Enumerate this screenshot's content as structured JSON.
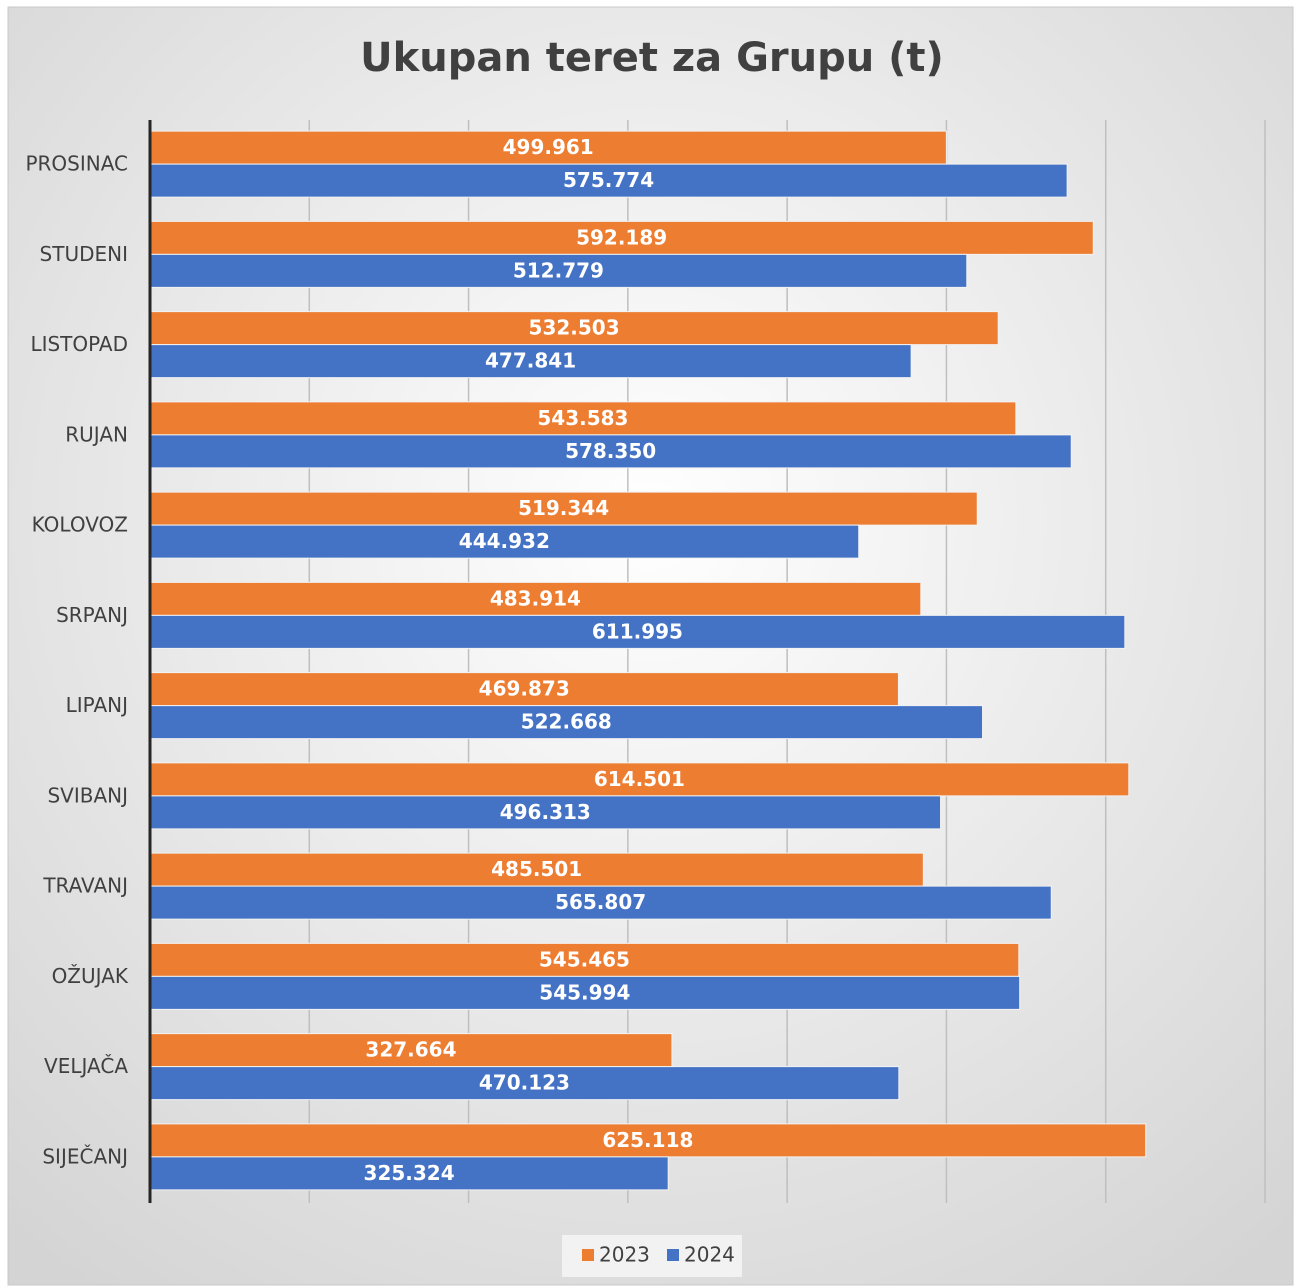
{
  "chart_data": {
    "type": "bar",
    "orientation": "horizontal",
    "title": "Ukupan teret za Grupu (t)",
    "categories": [
      "PROSINAC",
      "STUDENI",
      "LISTOPAD",
      "RUJAN",
      "KOLOVOZ",
      "SRPANJ",
      "LIPANJ",
      "SVIBANJ",
      "TRAVANJ",
      "OŽUJAK",
      "VELJAČA",
      "SIJEČANJ"
    ],
    "series": [
      {
        "name": "2023",
        "color": "#ed7d31",
        "values": [
          499.961,
          592.189,
          532.503,
          543.583,
          519.344,
          483.914,
          469.873,
          614.501,
          485.501,
          545.465,
          327.664,
          625.118
        ],
        "value_labels": [
          "499.961",
          "592.189",
          "532.503",
          "543.583",
          "519.344",
          "483.914",
          "469.873",
          "614.501",
          "485.501",
          "545.465",
          "327.664",
          "625.118"
        ]
      },
      {
        "name": "2024",
        "color": "#4472c4",
        "values": [
          575.774,
          512.779,
          477.841,
          578.35,
          444.932,
          611.995,
          522.668,
          496.313,
          565.807,
          545.994,
          470.123,
          325.324
        ],
        "value_labels": [
          "575.774",
          "512.779",
          "477.841",
          "578.350",
          "444.932",
          "611.995",
          "522.668",
          "496.313",
          "565.807",
          "545.994",
          "470.123",
          "325.324"
        ]
      }
    ],
    "xlim": [
      0,
      700
    ],
    "xticks": [
      0,
      100,
      200,
      300,
      400,
      500,
      600,
      700
    ],
    "grid": true,
    "legend": "bottom"
  }
}
